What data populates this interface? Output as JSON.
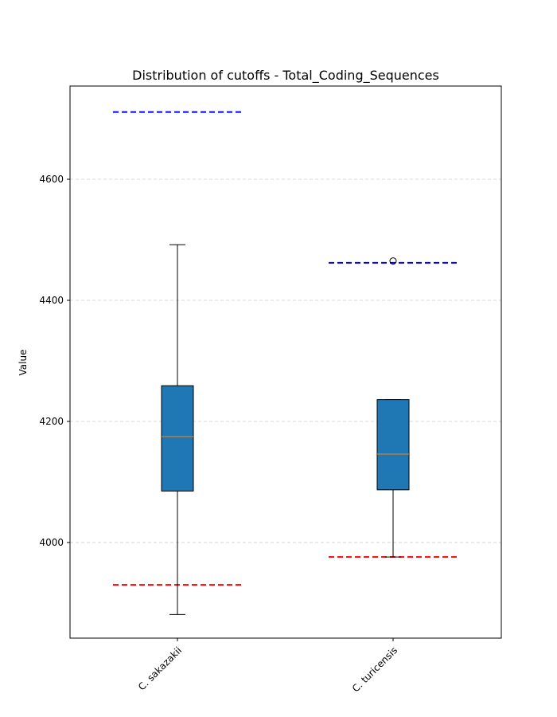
{
  "chart_data": {
    "type": "box",
    "title": "Distribution of cutoffs - Total_Coding_Sequences",
    "xlabel": "",
    "ylabel": "Value",
    "ylim": [
      3842,
      4754
    ],
    "yticks": [
      4000,
      4200,
      4400,
      4600
    ],
    "grid": "y-dashed",
    "categories": [
      "C. sakazakii",
      "C. turicensis"
    ],
    "boxes": [
      {
        "category": "C. sakazakii",
        "whisker_low": 3881,
        "q1": 4085,
        "median": 4175,
        "q3": 4259,
        "whisker_high": 4492,
        "outliers": []
      },
      {
        "category": "C. turicensis",
        "whisker_low": 3976,
        "q1": 4087,
        "median": 4146,
        "q3": 4236,
        "whisker_high": 4236,
        "outliers": [
          4465
        ]
      }
    ],
    "cutoffs": [
      {
        "category": "C. sakazakii",
        "upper": 4711,
        "lower": 3930
      },
      {
        "category": "C. turicensis",
        "upper": 4462,
        "lower": 3976
      }
    ],
    "colors": {
      "box_fill": "#1f77b4",
      "median": "#ff7f0e",
      "upper_cutoff": "#0000ff",
      "lower_cutoff": "#ff0000",
      "grid": "#cccccc"
    }
  }
}
